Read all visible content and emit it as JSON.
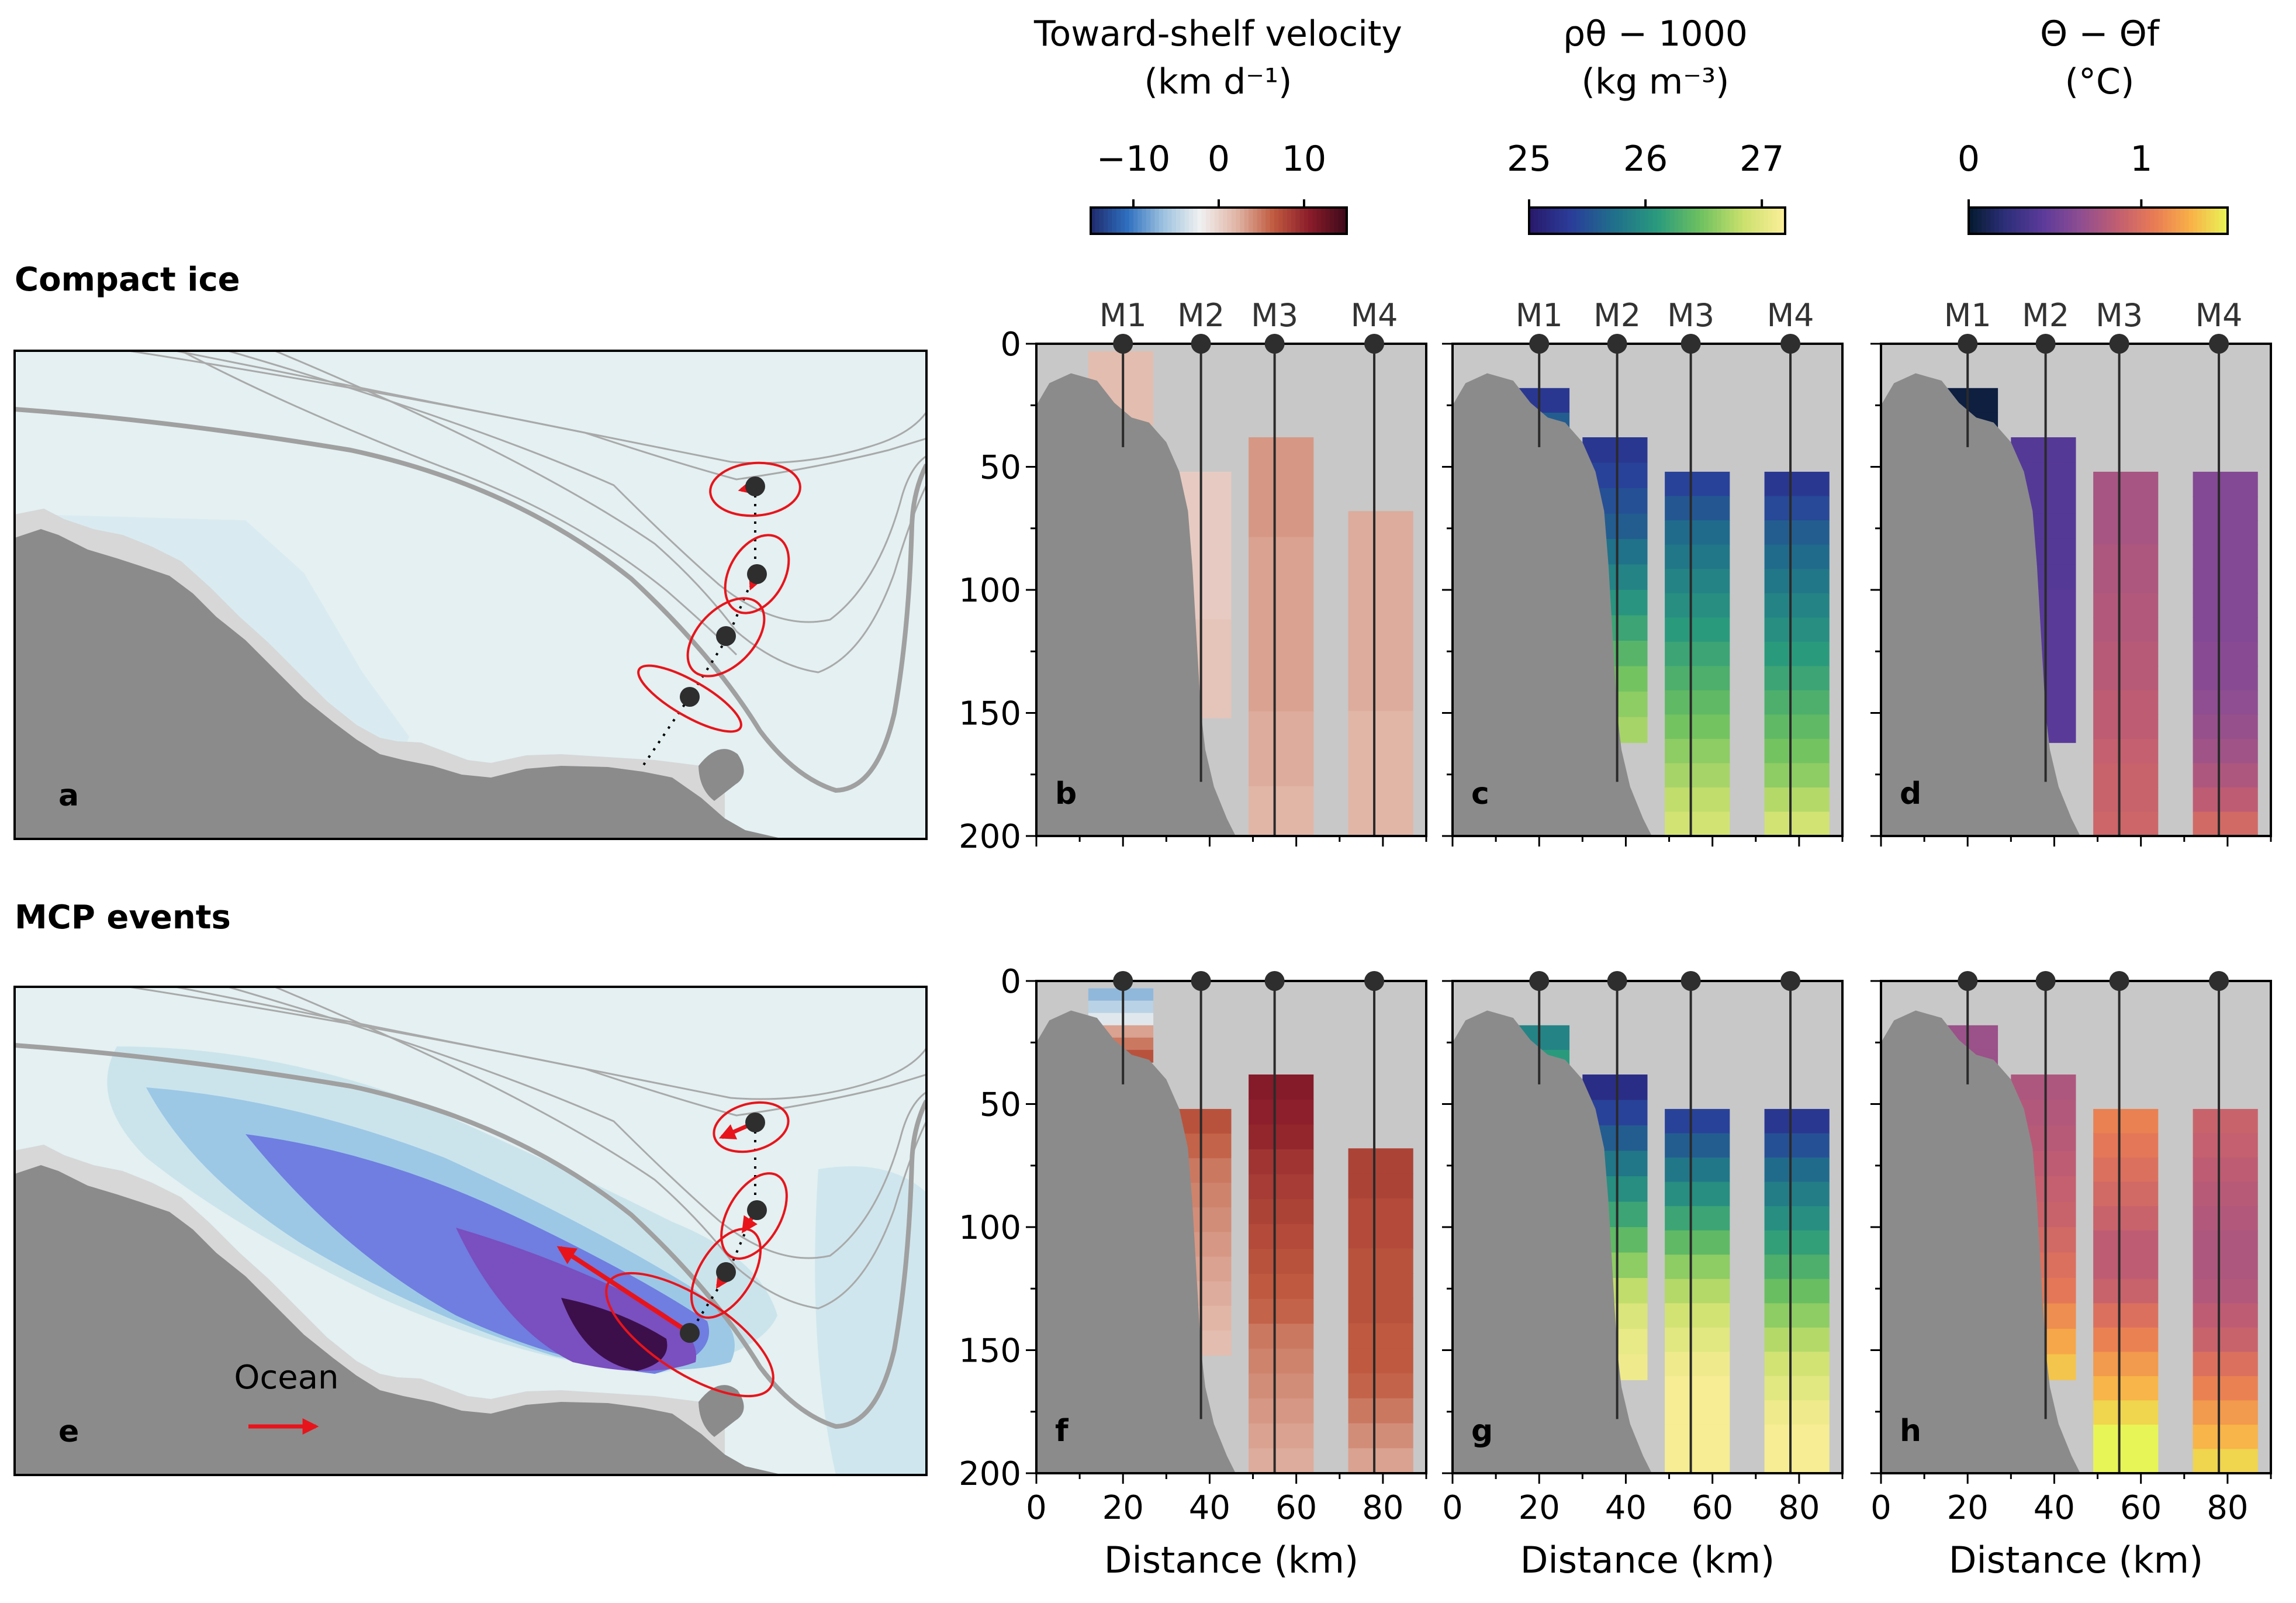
{
  "rows": [
    {
      "title": "Compact ice",
      "letters": [
        "a",
        "b",
        "c",
        "d"
      ]
    },
    {
      "title": "MCP events",
      "letters": [
        "e",
        "f",
        "g",
        "h"
      ]
    }
  ],
  "colorbars": [
    {
      "title_lines": [
        "Toward-shelf velocity",
        "(km d⁻¹)"
      ],
      "ticks": [
        "−10",
        "0",
        "10"
      ],
      "tick_values": [
        -10,
        0,
        10
      ],
      "range": [
        -15,
        15
      ],
      "colormap": "balance",
      "colors": [
        "#1f2a6b",
        "#2f6fc0",
        "#9ec3df",
        "#f1f1f1",
        "#e0b4a4",
        "#c05a3f",
        "#8a1b2a",
        "#3c0a1a"
      ]
    },
    {
      "title_lines": [
        "ρθ − 1000",
        "(kg m⁻³)"
      ],
      "ticks": [
        "25",
        "26",
        "27"
      ],
      "tick_values": [
        25,
        26,
        27
      ],
      "range": [
        25,
        27.2
      ],
      "colormap": "haline",
      "colors": [
        "#29186b",
        "#2a3e9a",
        "#1f6f8b",
        "#2a9a7d",
        "#6cc060",
        "#c9e06c",
        "#fdef9a"
      ]
    },
    {
      "title_lines": [
        "Θ − Θf",
        "(°C)"
      ],
      "ticks": [
        "0",
        "1"
      ],
      "tick_values": [
        0,
        1
      ],
      "range": [
        0,
        1.5
      ],
      "colormap": "thermal",
      "colors": [
        "#041a2e",
        "#2d2f7a",
        "#5b3a9a",
        "#8d4d92",
        "#c05d72",
        "#e87a55",
        "#f9b048",
        "#e8f556"
      ]
    }
  ],
  "moorings": {
    "labels": [
      "M1",
      "M2",
      "M3",
      "M4"
    ],
    "distance_km": [
      20,
      38,
      55,
      78
    ]
  },
  "ocean_label": "Ocean",
  "chart_data": {
    "type": "heatmap",
    "xlabel": "Distance (km)",
    "ylabel": "",
    "xlim": [
      0,
      90
    ],
    "ylim": [
      200,
      0
    ],
    "xticks": [
      0,
      20,
      40,
      60,
      80
    ],
    "yticks": [
      0,
      50,
      100,
      150,
      200
    ],
    "panels": [
      {
        "id": "b",
        "row": "Compact ice",
        "variable": "velocity",
        "columns": [
          {
            "mooring": "M1",
            "x_range": [
              12,
              27
            ],
            "depth_range": [
              3,
              33
            ],
            "values": [
              1.5,
              1.5,
              1.5
            ]
          },
          {
            "mooring": "M2",
            "x_range": [
              30,
              45
            ],
            "depth_range": [
              52,
              152
            ],
            "values": [
              0.5,
              0.5,
              0.5,
              0.5,
              0.5,
              0.5,
              1,
              1,
              1,
              1
            ]
          },
          {
            "mooring": "M3",
            "x_range": [
              49,
              64
            ],
            "depth_range": [
              38,
              200
            ],
            "values": [
              3.5,
              3.5,
              3.5,
              3.5,
              3,
              3,
              3,
              3,
              3,
              3,
              3,
              2.5,
              2.5,
              2.5,
              2,
              2
            ]
          },
          {
            "mooring": "M4",
            "x_range": [
              72,
              87
            ],
            "depth_range": [
              68,
              200
            ],
            "values": [
              2.5,
              2.5,
              2.5,
              2.5,
              2.5,
              2.5,
              2.5,
              2.5,
              2,
              2,
              2,
              2,
              2
            ]
          }
        ]
      },
      {
        "id": "c",
        "row": "Compact ice",
        "variable": "density",
        "columns": [
          {
            "mooring": "M1",
            "x_range": [
              12,
              27
            ],
            "depth_range": [
              18,
              38
            ],
            "values": [
              25.3,
              25.6
            ]
          },
          {
            "mooring": "M2",
            "x_range": [
              30,
              45
            ],
            "depth_range": [
              38,
              162
            ],
            "values": [
              25.3,
              25.4,
              25.5,
              25.6,
              25.75,
              25.9,
              26.05,
              26.2,
              26.35,
              26.5,
              26.6,
              26.7
            ]
          },
          {
            "mooring": "M3",
            "x_range": [
              49,
              64
            ],
            "depth_range": [
              52,
              200
            ],
            "values": [
              25.4,
              25.55,
              25.7,
              25.8,
              25.9,
              26,
              26.1,
              26.2,
              26.3,
              26.4,
              26.5,
              26.6,
              26.7,
              26.8,
              26.9
            ]
          },
          {
            "mooring": "M4",
            "x_range": [
              72,
              87
            ],
            "depth_range": [
              52,
              200
            ],
            "values": [
              25.3,
              25.45,
              25.6,
              25.7,
              25.8,
              25.9,
              26,
              26.1,
              26.2,
              26.3,
              26.4,
              26.5,
              26.6,
              26.75,
              26.9
            ]
          }
        ]
      },
      {
        "id": "d",
        "row": "Compact ice",
        "variable": "temperature",
        "columns": [
          {
            "mooring": "M1",
            "x_range": [
              12,
              27
            ],
            "depth_range": [
              18,
              38
            ],
            "values": [
              0.05,
              0.05
            ]
          },
          {
            "mooring": "M2",
            "x_range": [
              30,
              45
            ],
            "depth_range": [
              38,
              162
            ],
            "values": [
              0.4,
              0.4,
              0.4,
              0.4,
              0.4,
              0.4,
              0.42,
              0.42,
              0.42,
              0.42,
              0.42,
              0.42
            ]
          },
          {
            "mooring": "M3",
            "x_range": [
              49,
              64
            ],
            "depth_range": [
              52,
              200
            ],
            "values": [
              0.75,
              0.75,
              0.75,
              0.78,
              0.78,
              0.8,
              0.8,
              0.82,
              0.82,
              0.85,
              0.85,
              0.88,
              0.9,
              0.9,
              0.92
            ]
          },
          {
            "mooring": "M4",
            "x_range": [
              72,
              87
            ],
            "depth_range": [
              52,
              200
            ],
            "values": [
              0.6,
              0.6,
              0.6,
              0.6,
              0.6,
              0.6,
              0.6,
              0.62,
              0.62,
              0.65,
              0.68,
              0.72,
              0.78,
              0.85,
              0.95
            ]
          }
        ]
      },
      {
        "id": "f",
        "row": "MCP events",
        "variable": "velocity",
        "columns": [
          {
            "mooring": "M1",
            "x_range": [
              12,
              27
            ],
            "depth_range": [
              3,
              33
            ],
            "values": [
              -7,
              -5,
              -3,
              3,
              5,
              7
            ]
          },
          {
            "mooring": "M2",
            "x_range": [
              30,
              45
            ],
            "depth_range": [
              52,
              152
            ],
            "values": [
              7,
              6,
              5,
              4.5,
              4,
              3.5,
              3,
              2.5,
              2,
              1.5
            ]
          },
          {
            "mooring": "M3",
            "x_range": [
              49,
              64
            ],
            "depth_range": [
              38,
              200
            ],
            "values": [
              11,
              10.5,
              10,
              9,
              8.5,
              8,
              7.5,
              7,
              6.5,
              6,
              5,
              4.5,
              4,
              3.5,
              3,
              2.5
            ]
          },
          {
            "mooring": "M4",
            "x_range": [
              72,
              87
            ],
            "depth_range": [
              68,
              200
            ],
            "values": [
              8,
              8,
              7.5,
              7.5,
              7,
              7,
              7,
              6.5,
              6.5,
              6,
              5,
              4,
              3
            ]
          }
        ]
      },
      {
        "id": "g",
        "row": "MCP events",
        "variable": "density",
        "columns": [
          {
            "mooring": "M1",
            "x_range": [
              12,
              27
            ],
            "depth_range": [
              18,
              38
            ],
            "values": [
              25.9,
              26.1
            ]
          },
          {
            "mooring": "M2",
            "x_range": [
              30,
              45
            ],
            "depth_range": [
              38,
              162
            ],
            "values": [
              25.2,
              25.4,
              25.6,
              25.8,
              26,
              26.2,
              26.4,
              26.6,
              26.8,
              26.95,
              27.05,
              27.1
            ]
          },
          {
            "mooring": "M3",
            "x_range": [
              49,
              64
            ],
            "depth_range": [
              52,
              200
            ],
            "values": [
              25.4,
              25.6,
              25.8,
              26,
              26.2,
              26.4,
              26.6,
              26.75,
              26.9,
              27,
              27.1,
              27.15,
              27.15,
              27.15,
              27.15
            ]
          },
          {
            "mooring": "M4",
            "x_range": [
              72,
              87
            ],
            "depth_range": [
              52,
              200
            ],
            "values": [
              25.3,
              25.5,
              25.7,
              25.85,
              26,
              26.15,
              26.3,
              26.45,
              26.6,
              26.75,
              26.9,
              27,
              27.1,
              27.15,
              27.15
            ]
          }
        ]
      },
      {
        "id": "h",
        "row": "MCP events",
        "variable": "temperature",
        "columns": [
          {
            "mooring": "M1",
            "x_range": [
              12,
              27
            ],
            "depth_range": [
              18,
              38
            ],
            "values": [
              0.7,
              0.7
            ]
          },
          {
            "mooring": "M2",
            "x_range": [
              30,
              45
            ],
            "depth_range": [
              38,
              162
            ],
            "values": [
              0.78,
              0.8,
              0.82,
              0.85,
              0.88,
              0.9,
              0.95,
              1,
              1.05,
              1.15,
              1.25,
              1.35
            ]
          },
          {
            "mooring": "M3",
            "x_range": [
              49,
              64
            ],
            "depth_range": [
              52,
              200
            ],
            "values": [
              1.1,
              1.05,
              1,
              0.95,
              0.9,
              0.85,
              0.85,
              0.9,
              1,
              1.1,
              1.2,
              1.3,
              1.4,
              1.5,
              1.5
            ]
          },
          {
            "mooring": "M4",
            "x_range": [
              72,
              87
            ],
            "depth_range": [
              52,
              200
            ],
            "values": [
              0.9,
              0.88,
              0.85,
              0.82,
              0.8,
              0.78,
              0.78,
              0.8,
              0.85,
              0.9,
              1,
              1.1,
              1.2,
              1.3,
              1.4
            ]
          }
        ]
      }
    ]
  }
}
